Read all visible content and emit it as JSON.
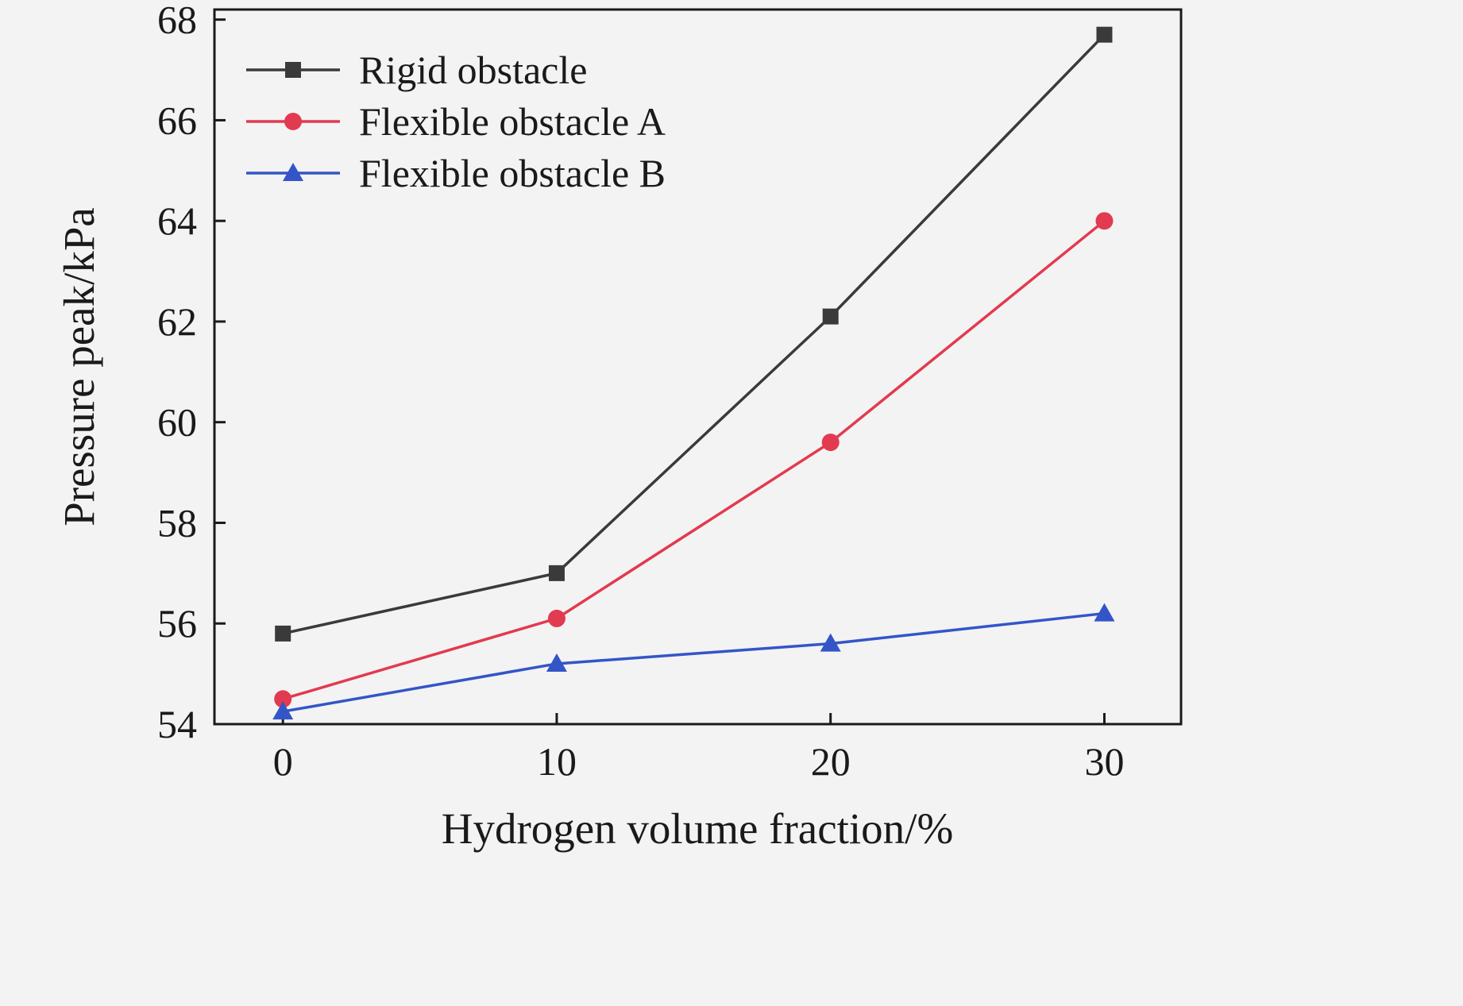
{
  "figure": {
    "background": "#f3f3f3",
    "axis_color": "#1a1a1a"
  },
  "chart_data": {
    "type": "line",
    "title": "",
    "xlabel": "Hydrogen volume fraction/%",
    "ylabel": "Pressure peak/kPa",
    "x": [
      0,
      10,
      20,
      30
    ],
    "xticks": [
      0,
      10,
      20,
      30
    ],
    "yticks": [
      54,
      56,
      58,
      60,
      62,
      64,
      66,
      68
    ],
    "xlim": [
      -2.5,
      32.8
    ],
    "ylim": [
      54,
      68.2
    ],
    "grid": false,
    "legend_position": "top-left",
    "series": [
      {
        "name": "Rigid obstacle",
        "marker": "square",
        "color": "#3a3a3a",
        "values": [
          55.8,
          57.0,
          62.1,
          67.7
        ]
      },
      {
        "name": "Flexible obstacle A",
        "marker": "circle",
        "color": "#e23a4f",
        "values": [
          54.5,
          56.1,
          59.6,
          64.0
        ]
      },
      {
        "name": "Flexible obstacle B",
        "marker": "triangle",
        "color": "#3455c8",
        "values": [
          54.25,
          55.2,
          55.6,
          56.2
        ]
      }
    ]
  }
}
